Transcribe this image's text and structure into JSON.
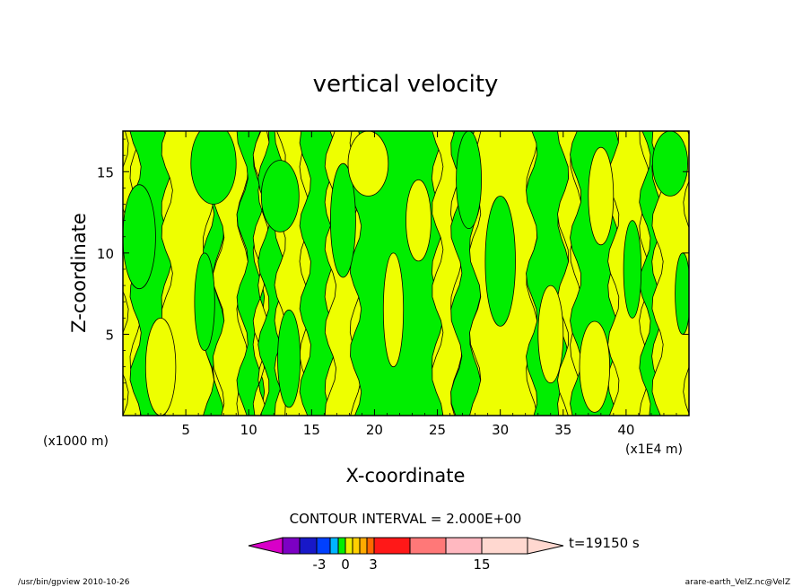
{
  "chart_data": {
    "type": "heatmap",
    "title": "vertical velocity",
    "xlabel": "X-coordinate",
    "ylabel": "Z-coordinate",
    "x_unit_left": "(x1000 m)",
    "x_unit_right": "(x1E4 m)",
    "xlim": [
      0,
      45
    ],
    "ylim": [
      0,
      17.5
    ],
    "x_ticks": [
      5,
      10,
      15,
      20,
      25,
      30,
      35,
      40
    ],
    "x_tick_labels": [
      "5",
      "10",
      "15",
      "20",
      "25",
      "30",
      "35",
      "40"
    ],
    "y_ticks": [
      5,
      10,
      15
    ],
    "y_tick_labels": [
      "5",
      "10",
      "15"
    ],
    "grid": false,
    "contour_interval": "CONTOUR INTERVAL = 2.000E+00",
    "colorbar": {
      "colors": [
        "#d800c8",
        "#7c00c4",
        "#1818c8",
        "#0040ff",
        "#00b4ff",
        "#00ee00",
        "#eeee00",
        "#ffd000",
        "#ffaa00",
        "#ff6800",
        "#ff1818",
        "#ff7878",
        "#ffb8c0",
        "#ffd8d0"
      ],
      "tick_labels": [
        "-3",
        "0",
        "3",
        "15"
      ]
    },
    "time_label": "t=19150 s",
    "field_colors": {
      "positive": "#eeff00",
      "negative": "#00ee00"
    },
    "bands": [
      {
        "x0": 0.0,
        "x1": 1.0,
        "sign": "pos"
      },
      {
        "x0": 1.0,
        "x1": 3.5,
        "sign": "neg"
      },
      {
        "x0": 3.5,
        "x1": 6.8,
        "sign": "pos"
      },
      {
        "x0": 6.8,
        "x1": 7.6,
        "sign": "neg"
      },
      {
        "x0": 7.6,
        "x1": 9.5,
        "sign": "pos"
      },
      {
        "x0": 9.5,
        "x1": 10.8,
        "sign": "neg"
      },
      {
        "x0": 10.8,
        "x1": 11.2,
        "sign": "pos"
      },
      {
        "x0": 11.2,
        "x1": 12.5,
        "sign": "neg"
      },
      {
        "x0": 12.5,
        "x1": 14.5,
        "sign": "pos"
      },
      {
        "x0": 14.5,
        "x1": 16.5,
        "sign": "neg"
      },
      {
        "x0": 16.5,
        "x1": 18.5,
        "sign": "pos"
      },
      {
        "x0": 18.5,
        "x1": 25.0,
        "sign": "neg"
      },
      {
        "x0": 25.0,
        "x1": 26.5,
        "sign": "pos"
      },
      {
        "x0": 26.5,
        "x1": 28.0,
        "sign": "neg"
      },
      {
        "x0": 28.0,
        "x1": 32.5,
        "sign": "pos"
      },
      {
        "x0": 32.5,
        "x1": 35.0,
        "sign": "neg"
      },
      {
        "x0": 35.0,
        "x1": 36.0,
        "sign": "pos"
      },
      {
        "x0": 36.0,
        "x1": 39.0,
        "sign": "neg"
      },
      {
        "x0": 39.0,
        "x1": 41.5,
        "sign": "pos"
      },
      {
        "x0": 41.5,
        "x1": 42.5,
        "sign": "neg"
      },
      {
        "x0": 42.5,
        "x1": 45.0,
        "sign": "pos"
      }
    ],
    "blobs": [
      {
        "x": 1.3,
        "y": 11.0,
        "rx": 1.3,
        "ry": 3.2,
        "sign": "neg"
      },
      {
        "x": 3.0,
        "y": 3.0,
        "rx": 1.2,
        "ry": 3.0,
        "sign": "pos"
      },
      {
        "x": 7.2,
        "y": 15.5,
        "rx": 1.8,
        "ry": 2.5,
        "sign": "neg"
      },
      {
        "x": 6.5,
        "y": 7.0,
        "rx": 0.8,
        "ry": 3.0,
        "sign": "neg"
      },
      {
        "x": 12.5,
        "y": 13.5,
        "rx": 1.5,
        "ry": 2.2,
        "sign": "neg"
      },
      {
        "x": 13.2,
        "y": 3.5,
        "rx": 0.9,
        "ry": 3.0,
        "sign": "neg"
      },
      {
        "x": 17.5,
        "y": 12.0,
        "rx": 1.0,
        "ry": 3.5,
        "sign": "neg"
      },
      {
        "x": 19.5,
        "y": 15.5,
        "rx": 1.6,
        "ry": 2.0,
        "sign": "pos"
      },
      {
        "x": 21.5,
        "y": 6.5,
        "rx": 0.8,
        "ry": 3.5,
        "sign": "pos"
      },
      {
        "x": 23.5,
        "y": 12.0,
        "rx": 1.0,
        "ry": 2.5,
        "sign": "pos"
      },
      {
        "x": 27.5,
        "y": 14.5,
        "rx": 1.0,
        "ry": 3.0,
        "sign": "neg"
      },
      {
        "x": 30.0,
        "y": 9.5,
        "rx": 1.2,
        "ry": 4.0,
        "sign": "neg"
      },
      {
        "x": 34.0,
        "y": 5.0,
        "rx": 1.0,
        "ry": 3.0,
        "sign": "pos"
      },
      {
        "x": 37.5,
        "y": 3.0,
        "rx": 1.2,
        "ry": 2.8,
        "sign": "pos"
      },
      {
        "x": 38.0,
        "y": 13.5,
        "rx": 1.0,
        "ry": 3.0,
        "sign": "pos"
      },
      {
        "x": 40.5,
        "y": 9.0,
        "rx": 0.7,
        "ry": 3.0,
        "sign": "neg"
      },
      {
        "x": 43.5,
        "y": 15.5,
        "rx": 1.4,
        "ry": 2.0,
        "sign": "neg"
      },
      {
        "x": 44.5,
        "y": 7.5,
        "rx": 0.6,
        "ry": 2.5,
        "sign": "neg"
      }
    ]
  },
  "footer": {
    "left": "/usr/bin/gpview   2010-10-26",
    "right": "arare-earth_VelZ.nc@VelZ"
  }
}
